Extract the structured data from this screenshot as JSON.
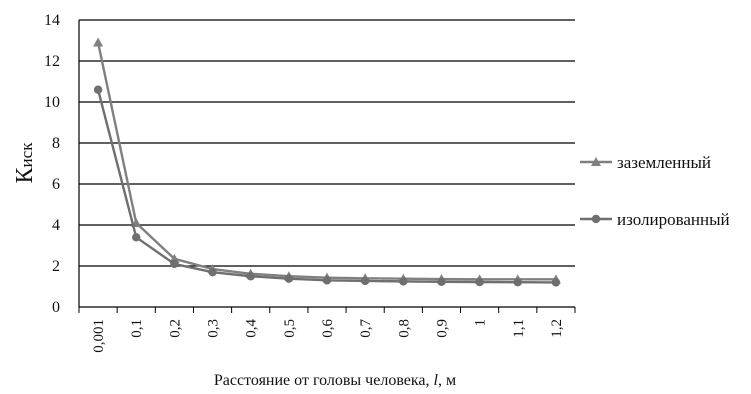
{
  "chart_data": {
    "type": "line",
    "title": "",
    "xlabel": "Расстояние от головы человека, l, м",
    "xlabel_parts": {
      "before": "Расстояние от головы человека, ",
      "italic": "l",
      "after": ", м"
    },
    "ylabel": {
      "main": "К",
      "sub": "иск"
    },
    "categories": [
      "0,001",
      "0,1",
      "0,2",
      "0,3",
      "0,4",
      "0,5",
      "0,6",
      "0,7",
      "0,8",
      "0,9",
      "1",
      "1,1",
      "1,2"
    ],
    "ylim": [
      0,
      14
    ],
    "yticks": [
      "0",
      "2",
      "4",
      "6",
      "8",
      "10",
      "12",
      "14"
    ],
    "grid": "horizontal",
    "legend_position": "right",
    "series": [
      {
        "name": "заземленный",
        "marker": "triangle",
        "color": "#808080",
        "values": [
          12.9,
          4.1,
          2.35,
          1.85,
          1.62,
          1.5,
          1.43,
          1.4,
          1.38,
          1.36,
          1.35,
          1.35,
          1.35
        ]
      },
      {
        "name": "изолированный",
        "marker": "circle",
        "color": "#6f6f6f",
        "values": [
          10.6,
          3.4,
          2.1,
          1.7,
          1.5,
          1.38,
          1.3,
          1.27,
          1.25,
          1.23,
          1.22,
          1.21,
          1.2
        ]
      }
    ]
  }
}
